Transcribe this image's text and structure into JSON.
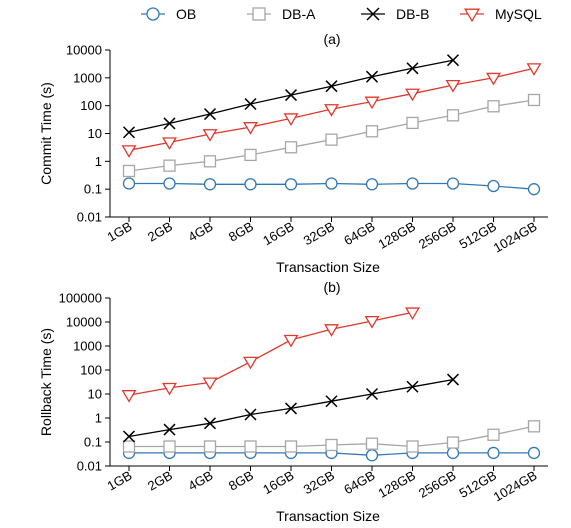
{
  "legend": [
    {
      "name": "OB",
      "color": "#2f78b8",
      "marker": "circle"
    },
    {
      "name": "DB-A",
      "color": "#a6a6a6",
      "marker": "square"
    },
    {
      "name": "DB-B",
      "color": "#000000",
      "marker": "x"
    },
    {
      "name": "MySQL",
      "color": "#e0382b",
      "marker": "triangle-down"
    }
  ],
  "chart_data": [
    {
      "type": "line",
      "title": "(a)",
      "xlabel": "Transaction Size",
      "ylabel": "Commit Time (s)",
      "yscale": "log",
      "ylim": [
        0.01,
        10000
      ],
      "yticks": [
        "0.01",
        "0.1",
        "1",
        "10",
        "100",
        "1000",
        "10000"
      ],
      "categories": [
        "1GB",
        "2GB",
        "4GB",
        "8GB",
        "16GB",
        "32GB",
        "64GB",
        "128GB",
        "256GB",
        "512GB",
        "1024GB"
      ],
      "series": [
        {
          "name": "OB",
          "values": [
            0.16,
            0.16,
            0.15,
            0.15,
            0.15,
            0.16,
            0.15,
            0.16,
            0.16,
            0.13,
            0.1
          ]
        },
        {
          "name": "DB-A",
          "values": [
            0.45,
            0.7,
            1.0,
            1.7,
            3.2,
            6.0,
            12,
            24,
            45,
            95,
            160
          ]
        },
        {
          "name": "DB-B",
          "values": [
            11,
            23,
            50,
            115,
            240,
            500,
            1100,
            2200,
            4300,
            null,
            null
          ]
        },
        {
          "name": "MySQL",
          "values": [
            2.5,
            4.8,
            9.5,
            17,
            35,
            75,
            140,
            270,
            550,
            1000,
            2200
          ]
        }
      ]
    },
    {
      "type": "line",
      "title": "(b)",
      "xlabel": "Transaction Size",
      "ylabel": "Rollback Time (s)",
      "yscale": "log",
      "ylim": [
        0.01,
        100000
      ],
      "yticks": [
        "0.01",
        "0.1",
        "1",
        "10",
        "100",
        "1000",
        "10000",
        "100000"
      ],
      "categories": [
        "1GB",
        "2GB",
        "4GB",
        "8GB",
        "16GB",
        "32GB",
        "64GB",
        "128GB",
        "256GB",
        "512GB",
        "1024GB"
      ],
      "series": [
        {
          "name": "OB",
          "values": [
            0.035,
            0.035,
            0.035,
            0.035,
            0.035,
            0.035,
            0.028,
            0.035,
            0.035,
            0.035,
            0.035
          ]
        },
        {
          "name": "DB-A",
          "values": [
            0.065,
            0.065,
            0.065,
            0.065,
            0.065,
            0.075,
            0.085,
            0.065,
            0.095,
            0.2,
            0.45
          ]
        },
        {
          "name": "DB-B",
          "values": [
            0.17,
            0.33,
            0.6,
            1.4,
            2.5,
            5,
            10,
            20,
            40,
            null,
            null
          ]
        },
        {
          "name": "MySQL",
          "values": [
            9,
            18,
            30,
            220,
            1800,
            5000,
            11000,
            25000,
            null,
            null,
            null
          ]
        }
      ]
    }
  ]
}
